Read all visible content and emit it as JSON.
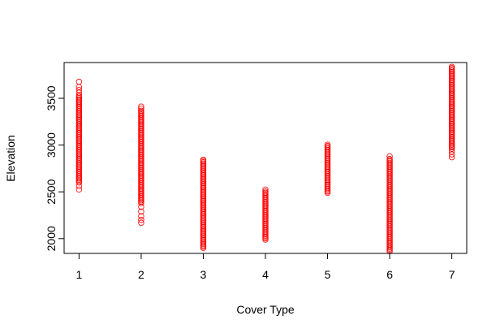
{
  "chart_data": {
    "type": "scatter",
    "title": "",
    "xlabel": "Cover Type",
    "ylabel": "Elevation",
    "xlim": [
      0.76,
      7.24
    ],
    "ylim": [
      1842,
      3882
    ],
    "x_ticks": [
      1,
      2,
      3,
      4,
      5,
      6,
      7
    ],
    "y_ticks": [
      2000,
      2500,
      3000,
      3500
    ],
    "grid": false,
    "legend": "none",
    "marker": "open-circle",
    "point_color": "#ff0000",
    "groups": [
      {
        "x": 1,
        "y_min": 2525,
        "y_max": 3677,
        "outliers": [
          3677,
          3620,
          3590,
          3560,
          2600,
          2560,
          2525
        ]
      },
      {
        "x": 2,
        "y_min": 2170,
        "y_max": 3412,
        "outliers": [
          3412,
          3390,
          2380,
          2340,
          2290,
          2240,
          2200,
          2170
        ]
      },
      {
        "x": 3,
        "y_min": 1900,
        "y_max": 2850,
        "outliers": []
      },
      {
        "x": 4,
        "y_min": 1990,
        "y_max": 2525,
        "outliers": [
          2525
        ]
      },
      {
        "x": 5,
        "y_min": 2490,
        "y_max": 3010,
        "outliers": []
      },
      {
        "x": 6,
        "y_min": 1865,
        "y_max": 2880,
        "outliers": [
          2880,
          1865
        ]
      },
      {
        "x": 7,
        "y_min": 2870,
        "y_max": 3850,
        "outliers": [
          2960,
          2930,
          2900,
          2870
        ]
      }
    ]
  }
}
